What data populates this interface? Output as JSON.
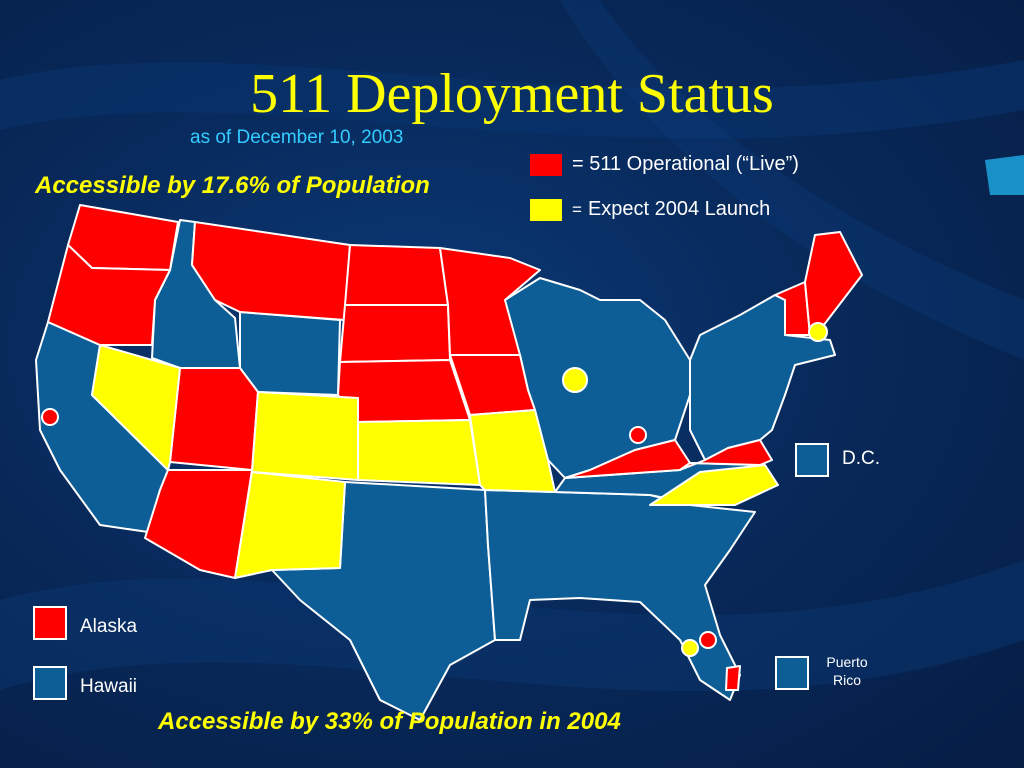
{
  "title": "511 Deployment Status",
  "subtitle": "as of December 10, 2003",
  "headline_top": "Accessible by 17.6% of Population",
  "headline_bottom": "Accessible by 33% of Population in 2004",
  "legend": {
    "operational": "= 511 Operational (“Live”)",
    "expect_prefix": "=",
    "expect": "Expect 2004 Launch"
  },
  "insets": {
    "dc": "D.C.",
    "alaska": "Alaska",
    "hawaii": "Hawaii",
    "puerto_rico_1": "Puerto",
    "puerto_rico_2": "Rico"
  },
  "colors": {
    "operational": "#ff0000",
    "expected": "#ffff00",
    "none": "#0d5e96",
    "background": "#082a5c"
  },
  "states_operational": [
    "WA",
    "OR",
    "MT",
    "ND",
    "SD",
    "NE",
    "MN",
    "IA",
    "UT",
    "AZ",
    "KY",
    "VA",
    "VT",
    "NH",
    "ME"
  ],
  "states_expected": [
    "NV",
    "CO",
    "NM",
    "KS",
    "MO",
    "NC"
  ]
}
